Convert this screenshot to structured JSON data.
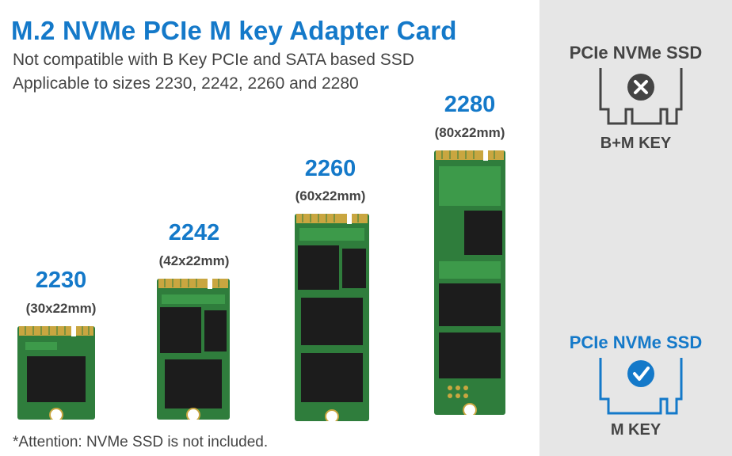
{
  "header": {
    "title": "M.2 NVMe PCIe M key Adapter Card",
    "line1": "Not compatible with B Key PCIe and SATA based SSD",
    "line2": "Applicable to sizes 2230, 2242, 2260 and 2280"
  },
  "sizes": [
    {
      "code": "2230",
      "dims": "(30x22mm)"
    },
    {
      "code": "2242",
      "dims": "(42x22mm)"
    },
    {
      "code": "2260",
      "dims": "(60x22mm)"
    },
    {
      "code": "2280",
      "dims": "(80x22mm)"
    }
  ],
  "footer": {
    "note": "*Attention: NVMe SSD is not included."
  },
  "key_panel": {
    "incompatible": {
      "title": "PCIe NVMe SSD",
      "key": "B+M KEY",
      "status": "not-supported",
      "icon": "cross-icon"
    },
    "compatible": {
      "title": "PCIe NVMe SSD",
      "key": "M KEY",
      "status": "supported",
      "icon": "check-icon"
    }
  },
  "colors": {
    "accent": "#1479c9",
    "text": "#444444",
    "pcb": "#2f7d3c",
    "panel": "#e6e6e6"
  }
}
